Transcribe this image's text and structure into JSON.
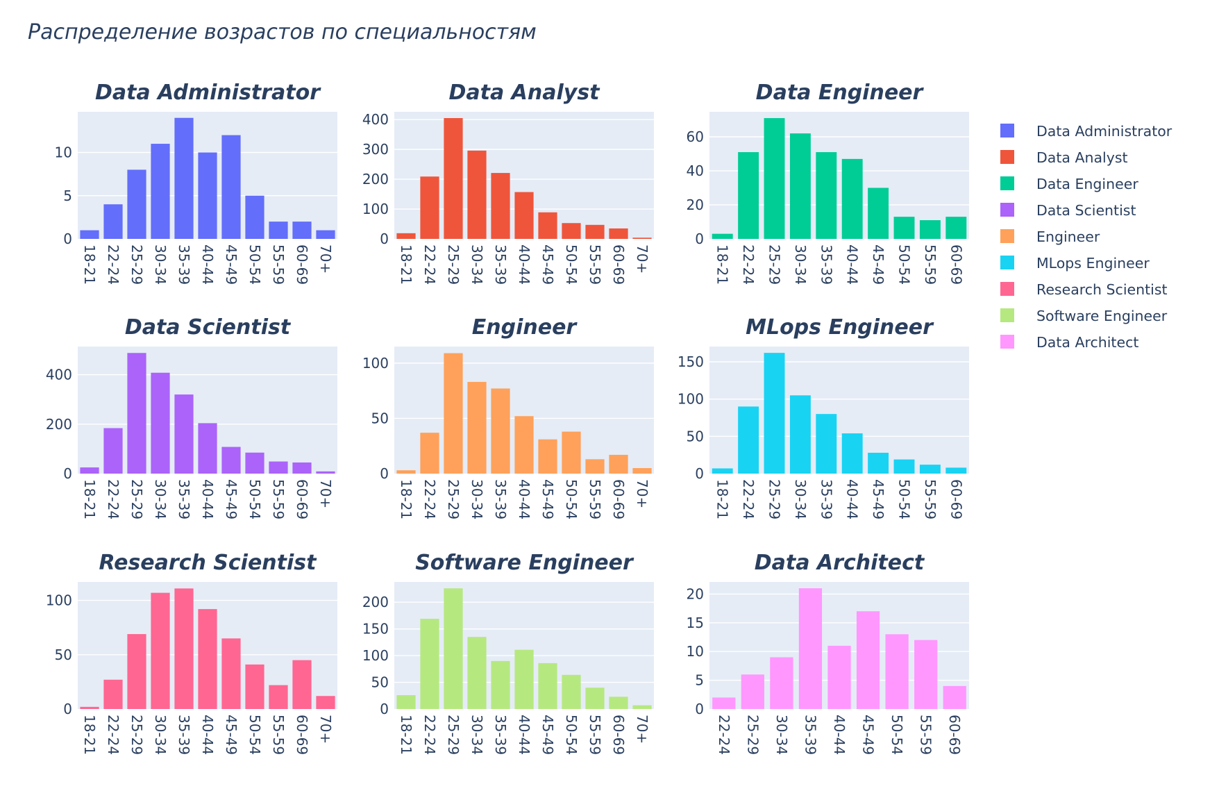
{
  "title": "Распределение возрастов по специальностям",
  "chart_data": [
    {
      "type": "bar",
      "title": "Data Administrator",
      "color": "#636efa",
      "categories": [
        "18-21",
        "22-24",
        "25-29",
        "30-34",
        "35-39",
        "40-44",
        "45-49",
        "50-54",
        "55-59",
        "60-69",
        "70+"
      ],
      "values": [
        1,
        4,
        8,
        11,
        14,
        10,
        12,
        5,
        2,
        2,
        1
      ],
      "yticks": [
        0,
        5,
        10
      ],
      "ylim": [
        0,
        14.7
      ],
      "grid": true
    },
    {
      "type": "bar",
      "title": "Data Analyst",
      "color": "#EF553B",
      "categories": [
        "18-21",
        "22-24",
        "25-29",
        "30-34",
        "35-39",
        "40-44",
        "45-49",
        "50-54",
        "55-59",
        "60-69",
        "70+"
      ],
      "values": [
        19,
        209,
        405,
        296,
        221,
        157,
        89,
        53,
        47,
        35,
        4
      ],
      "yticks": [
        0,
        100,
        200,
        300,
        400
      ],
      "ylim": [
        0,
        426
      ],
      "grid": true
    },
    {
      "type": "bar",
      "title": "Data Engineer",
      "color": "#00cc96",
      "categories": [
        "18-21",
        "22-24",
        "25-29",
        "30-34",
        "35-39",
        "40-44",
        "45-49",
        "50-54",
        "55-59",
        "60-69"
      ],
      "values": [
        3,
        51,
        71,
        62,
        51,
        47,
        30,
        13,
        11,
        13
      ],
      "yticks": [
        0,
        20,
        40,
        60
      ],
      "ylim": [
        0,
        74.7
      ],
      "grid": true
    },
    {
      "type": "bar",
      "title": "Data Scientist",
      "color": "#ab63fa",
      "categories": [
        "18-21",
        "22-24",
        "25-29",
        "30-34",
        "35-39",
        "40-44",
        "45-49",
        "50-54",
        "55-59",
        "60-69",
        "70+"
      ],
      "values": [
        25,
        184,
        488,
        408,
        320,
        204,
        108,
        85,
        49,
        45,
        9
      ],
      "yticks": [
        0,
        200,
        400
      ],
      "ylim": [
        0,
        514
      ],
      "grid": true
    },
    {
      "type": "bar",
      "title": "Engineer",
      "color": "#FFA15A",
      "categories": [
        "18-21",
        "22-24",
        "25-29",
        "30-34",
        "35-39",
        "40-44",
        "45-49",
        "50-54",
        "55-59",
        "60-69",
        "70+"
      ],
      "values": [
        3,
        37,
        109,
        83,
        77,
        52,
        31,
        38,
        13,
        17,
        5
      ],
      "yticks": [
        0,
        50,
        100
      ],
      "ylim": [
        0,
        115
      ],
      "grid": true
    },
    {
      "type": "bar",
      "title": "MLops Engineer",
      "color": "#19d3f3",
      "categories": [
        "18-21",
        "22-24",
        "25-29",
        "30-34",
        "35-39",
        "40-44",
        "45-49",
        "50-54",
        "55-59",
        "60-69"
      ],
      "values": [
        7,
        90,
        162,
        105,
        80,
        54,
        28,
        19,
        12,
        8
      ],
      "yticks": [
        0,
        50,
        100,
        150
      ],
      "ylim": [
        0,
        170.5
      ],
      "grid": true
    },
    {
      "type": "bar",
      "title": "Research Scientist",
      "color": "#FF6692",
      "categories": [
        "18-21",
        "22-24",
        "25-29",
        "30-34",
        "35-39",
        "40-44",
        "45-49",
        "50-54",
        "55-59",
        "60-69",
        "70+"
      ],
      "values": [
        2,
        27,
        69,
        107,
        111,
        92,
        65,
        41,
        22,
        45,
        12
      ],
      "yticks": [
        0,
        50,
        100
      ],
      "ylim": [
        0,
        117
      ],
      "grid": true
    },
    {
      "type": "bar",
      "title": "Software Engineer",
      "color": "#B6E880",
      "categories": [
        "18-21",
        "22-24",
        "25-29",
        "30-34",
        "35-39",
        "40-44",
        "45-49",
        "50-54",
        "55-59",
        "60-69",
        "70+"
      ],
      "values": [
        26,
        169,
        226,
        135,
        90,
        111,
        86,
        64,
        40,
        23,
        7
      ],
      "yticks": [
        0,
        50,
        100,
        150,
        200
      ],
      "ylim": [
        0,
        238
      ],
      "grid": true
    },
    {
      "type": "bar",
      "title": "Data Architect",
      "color": "#FF97FF",
      "categories": [
        "22-24",
        "25-29",
        "30-34",
        "35-39",
        "40-44",
        "45-49",
        "50-54",
        "55-59",
        "60-69"
      ],
      "values": [
        2,
        6,
        9,
        21,
        11,
        17,
        13,
        12,
        4
      ],
      "yticks": [
        0,
        5,
        10,
        15,
        20
      ],
      "ylim": [
        0,
        22.1
      ],
      "grid": true
    }
  ],
  "legend": {
    "placement": "right",
    "entries": [
      {
        "label": "Data Administrator",
        "color": "#636efa"
      },
      {
        "label": "Data Analyst",
        "color": "#EF553B"
      },
      {
        "label": "Data Engineer",
        "color": "#00cc96"
      },
      {
        "label": "Data Scientist",
        "color": "#ab63fa"
      },
      {
        "label": "Engineer",
        "color": "#FFA15A"
      },
      {
        "label": "MLops Engineer",
        "color": "#19d3f3"
      },
      {
        "label": "Research Scientist",
        "color": "#FF6692"
      },
      {
        "label": "Software Engineer",
        "color": "#B6E880"
      },
      {
        "label": "Data Architect",
        "color": "#FF97FF"
      }
    ]
  },
  "style": {
    "plot_bg": "#e5ecf6",
    "grid_color": "#ffffff",
    "text_color": "#2a3f5f"
  }
}
